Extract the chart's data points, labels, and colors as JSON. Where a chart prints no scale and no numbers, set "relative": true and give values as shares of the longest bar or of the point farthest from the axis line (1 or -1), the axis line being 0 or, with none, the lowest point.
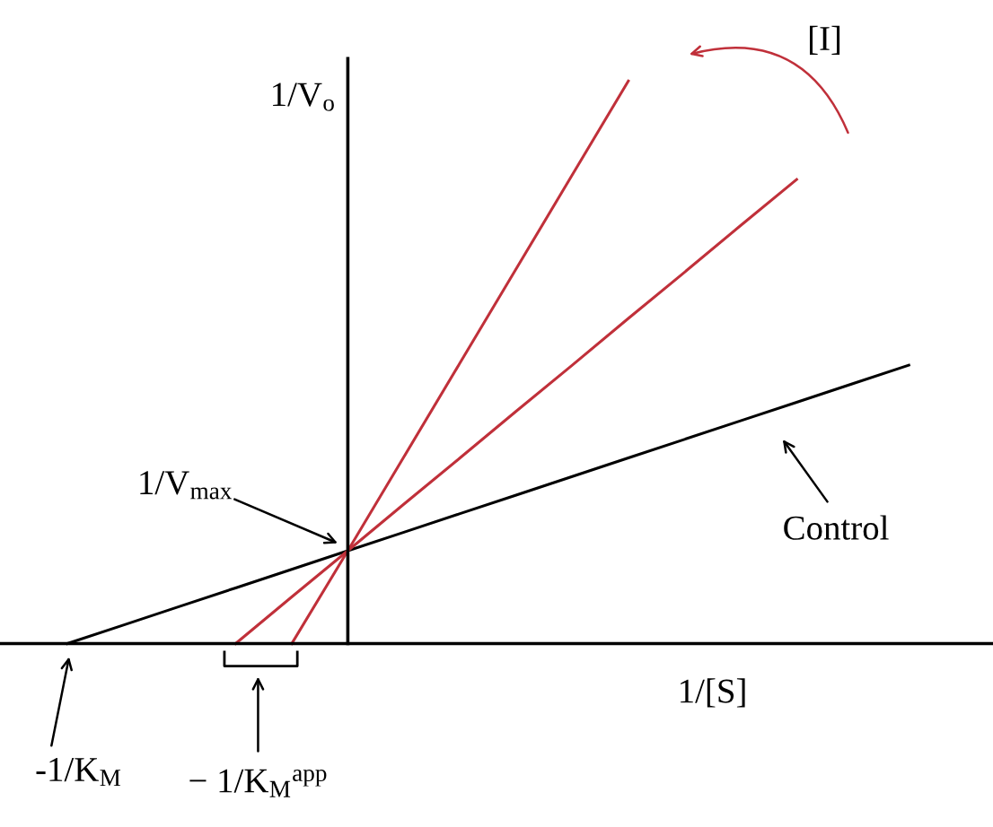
{
  "chart_data": {
    "type": "line",
    "relative": true,
    "xlabel": "1/[S]",
    "ylabel": "1/V$_{o}$",
    "marker": "none",
    "line_style": "solid",
    "categories": [
      null,
      null,
      null,
      null,
      null,
      null,
      null,
      null,
      null,
      null,
      null,
      null,
      null,
      null,
      null,
      null
    ],
    "series": [
      {
        "color": "#000000",
        "values": [
          0,
          0.033,
          0.066,
          0.099,
          0.132,
          0.165,
          0.198,
          0.231,
          0.264,
          0.297,
          0.33,
          0.363,
          0.396,
          0.429,
          0.462,
          0.495
        ]
      },
      {
        "color": "#c0303a",
        "values": [
          null,
          null,
          null,
          0,
          0.083,
          0.165,
          0.248,
          0.33,
          0.413,
          0.495,
          0.578,
          0.66,
          0.743,
          0.825,
          null,
          null
        ]
      },
      {
        "color": "#c0303a",
        "values": [
          null,
          null,
          null,
          null,
          0,
          0.165,
          0.332,
          0.499,
          0.666,
          0.833,
          1,
          null,
          null,
          null,
          null,
          null
        ]
      }
    ],
    "annotations": [
      "1/V$_{max}$",
      "-1/K$_{M}$",
      "− 1/K$_{M}$$^{app}$",
      "Control",
      "[I]"
    ]
  }
}
